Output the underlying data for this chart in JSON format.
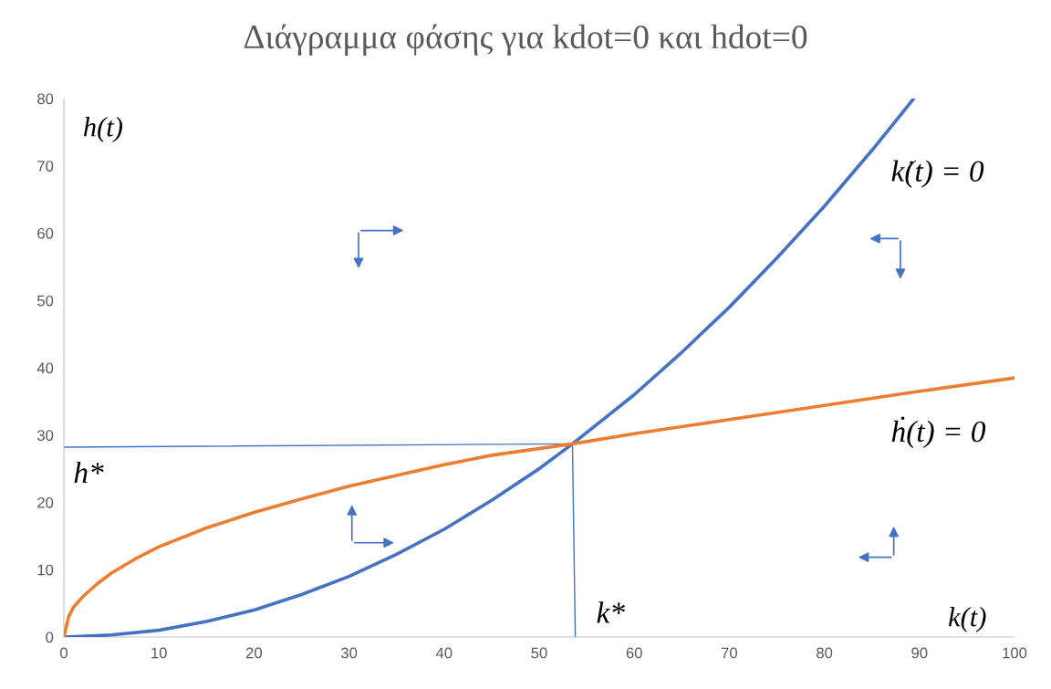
{
  "chart_data": {
    "type": "line",
    "title": "Διάγραμμα φάσης για kdot=0 και hdot=0",
    "xlabel": "k(t)",
    "ylabel": "h(t)",
    "xlim": [
      0,
      100
    ],
    "xticks": [
      0,
      10,
      20,
      30,
      40,
      50,
      60,
      70,
      80,
      90,
      100
    ],
    "ylim": [
      0,
      80
    ],
    "yticks": [
      0,
      10,
      20,
      30,
      40,
      50,
      60,
      70,
      80
    ],
    "grid": false,
    "legend": false,
    "series": [
      {
        "color": "#4472c4",
        "x": [
          0,
          5,
          10,
          15,
          20,
          25,
          30,
          35,
          40,
          45,
          50,
          53.5,
          60,
          65,
          70,
          75,
          80,
          85,
          89.4
        ],
        "values": [
          0,
          0.3,
          1,
          2.3,
          4,
          6.3,
          9,
          12.3,
          16,
          20.3,
          25,
          28.7,
          36,
          42.3,
          49,
          56.3,
          64,
          72.3,
          80
        ]
      },
      {
        "color": "#ed7d31",
        "x": [
          0,
          0.5,
          1,
          2,
          3.5,
          5,
          7.5,
          10,
          15,
          20,
          25,
          30,
          35,
          40,
          45,
          53.5,
          60,
          70,
          80,
          90,
          100
        ],
        "values": [
          0,
          3,
          4.4,
          6,
          7.9,
          9.5,
          11.6,
          13.4,
          16.2,
          18.5,
          20.5,
          22.4,
          24,
          25.6,
          27,
          28.7,
          30.2,
          32.3,
          34.4,
          36.5,
          38.5
        ]
      },
      {
        "color": "#4472c4",
        "x": [
          0,
          53.5
        ],
        "values": [
          28.2,
          28.7
        ]
      },
      {
        "color": "#4472c4",
        "x": [
          53.5,
          53.8
        ],
        "values": [
          28.7,
          0
        ]
      }
    ],
    "annotations": [
      "k̇(t) = 0",
      "ḣ(t) = 0",
      "h*",
      "k*"
    ]
  }
}
